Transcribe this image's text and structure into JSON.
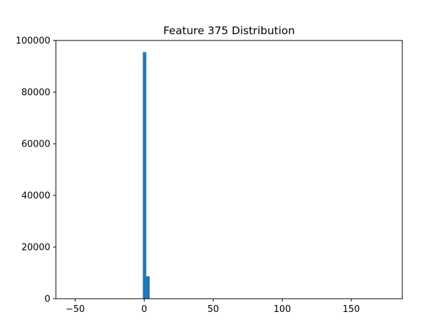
{
  "chart_data": {
    "type": "bar",
    "title": "Feature 375 Distribution",
    "xlabel": "",
    "ylabel": "",
    "xlim": [
      -64,
      187
    ],
    "ylim": [
      0,
      100000
    ],
    "x_ticks": [
      -50,
      0,
      50,
      100,
      150
    ],
    "y_ticks": [
      0,
      20000,
      40000,
      60000,
      80000,
      100000
    ],
    "bin_width": 2.5,
    "bar_color": "#1f77b4",
    "grid": false,
    "bins": [
      {
        "x0": -1,
        "x1": 1.5,
        "count": 95500
      },
      {
        "x0": 1.5,
        "x1": 4,
        "count": 8700
      }
    ]
  }
}
